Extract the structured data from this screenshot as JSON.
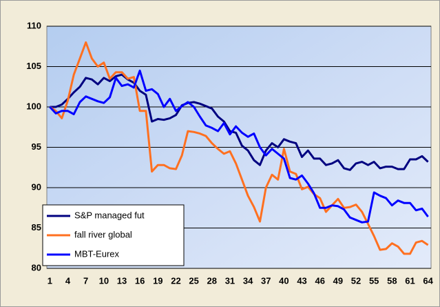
{
  "chart_data": {
    "type": "line",
    "categories": [
      1,
      null,
      null,
      4,
      null,
      null,
      7,
      null,
      null,
      10,
      null,
      null,
      13,
      null,
      null,
      16,
      null,
      null,
      19,
      null,
      null,
      22,
      null,
      null,
      25,
      null,
      null,
      28,
      null,
      null,
      31,
      null,
      null,
      34,
      null,
      null,
      37,
      null,
      null,
      40,
      null,
      null,
      43,
      null,
      null,
      46,
      null,
      null,
      49,
      null,
      null,
      52,
      null,
      null,
      55,
      null,
      null,
      58,
      null,
      null,
      61,
      null,
      null,
      64
    ],
    "series": [
      {
        "name": "S&P managed fut",
        "color": "#000080",
        "values": [
          100,
          100,
          100.3,
          101,
          101.8,
          102.5,
          103.6,
          103.4,
          102.8,
          103.6,
          103.2,
          103.8,
          104,
          103.4,
          103,
          102,
          101.5,
          98.2,
          98.5,
          98.4,
          98.6,
          99,
          100.2,
          100.5,
          100.6,
          100.4,
          100.1,
          99.8,
          98.8,
          98.2,
          97,
          96.8,
          95.2,
          94.6,
          93.4,
          92.8,
          94.6,
          95.5,
          95,
          96,
          95.7,
          95.5,
          93.8,
          94.6,
          93.6,
          93.6,
          92.8,
          93,
          93.4,
          92.4,
          92.2,
          93,
          93.2,
          92.8,
          93.2,
          92.4,
          92.6,
          92.6,
          92.3,
          92.3,
          93.5,
          93.5,
          93.9,
          93.2
        ]
      },
      {
        "name": "fall river global",
        "color": "#FF7020",
        "values": [
          100,
          99.5,
          98.6,
          100.8,
          104,
          106,
          108,
          106,
          105,
          105.5,
          103.5,
          104.3,
          104.3,
          103.5,
          103.7,
          99.5,
          99.5,
          92,
          92.8,
          92.8,
          92.4,
          92.3,
          94,
          97,
          96.9,
          96.7,
          96.4,
          95.5,
          94.8,
          94.2,
          94.5,
          93,
          91,
          89,
          87.6,
          85.8,
          90,
          91.6,
          91,
          94.8,
          92,
          91.7,
          89.8,
          90.1,
          89.2,
          88.7,
          87,
          87.8,
          88.6,
          87.5,
          87.6,
          87.9,
          87,
          85.5,
          84,
          82.3,
          82.4,
          83.1,
          82.7,
          81.8,
          81.8,
          83.2,
          83.4,
          82.9
        ]
      },
      {
        "name": "MBT-Eurex",
        "color": "#0000FF",
        "values": [
          100,
          99.2,
          99.5,
          99.5,
          99.1,
          100.6,
          101.3,
          101,
          100.7,
          100.5,
          101.2,
          103.6,
          102.6,
          102.8,
          102.4,
          104.5,
          102,
          102.2,
          101.6,
          100,
          101,
          99.5,
          100.1,
          100.6,
          100,
          98.8,
          97.7,
          97.4,
          97,
          98,
          96.6,
          97.6,
          96.8,
          96.3,
          96.7,
          95,
          94,
          94.8,
          94.2,
          93.6,
          91.2,
          91,
          91.5,
          90.5,
          89.3,
          87.5,
          87.5,
          87.8,
          87.7,
          87.3,
          86.3,
          86,
          85.7,
          85.8,
          89.4,
          89,
          88.7,
          87.8,
          88.4,
          88.1,
          88.1,
          87.2,
          87.4,
          86.4
        ]
      }
    ],
    "ylim": [
      80,
      110
    ],
    "yticks": [
      80,
      85,
      90,
      95,
      100,
      105,
      110
    ],
    "grid": true,
    "legend": "lower-left"
  }
}
